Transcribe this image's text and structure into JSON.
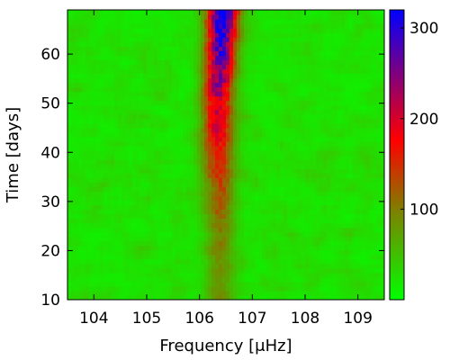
{
  "chart_data": {
    "type": "heatmap",
    "title": "",
    "xlabel": "Frequency [μHz]",
    "ylabel": "Time [days]",
    "xlim": [
      103.5,
      109.5
    ],
    "ylim": [
      10,
      69
    ],
    "x_ticks": [
      "104",
      "105",
      "106",
      "107",
      "108",
      "109"
    ],
    "x_tick_values": [
      104,
      105,
      106,
      107,
      108,
      109
    ],
    "y_ticks": [
      "10",
      "20",
      "30",
      "40",
      "50",
      "60"
    ],
    "y_tick_values": [
      10,
      20,
      30,
      40,
      50,
      60
    ],
    "colorbar": {
      "range": [
        0,
        320
      ],
      "ticks": [
        "100",
        "200",
        "300"
      ],
      "tick_values": [
        100,
        200,
        300
      ],
      "colors": [
        "#00ff00",
        "#ff0000",
        "#0000ff"
      ]
    },
    "feature": {
      "description": "power ridge",
      "center_frequency": [
        106.4,
        106.4,
        106.35,
        106.35,
        106.4,
        106.45
      ],
      "times": [
        10,
        25,
        40,
        50,
        60,
        69
      ],
      "peak_power": [
        55,
        75,
        150,
        190,
        250,
        320
      ],
      "ridge_width": 0.28
    }
  }
}
